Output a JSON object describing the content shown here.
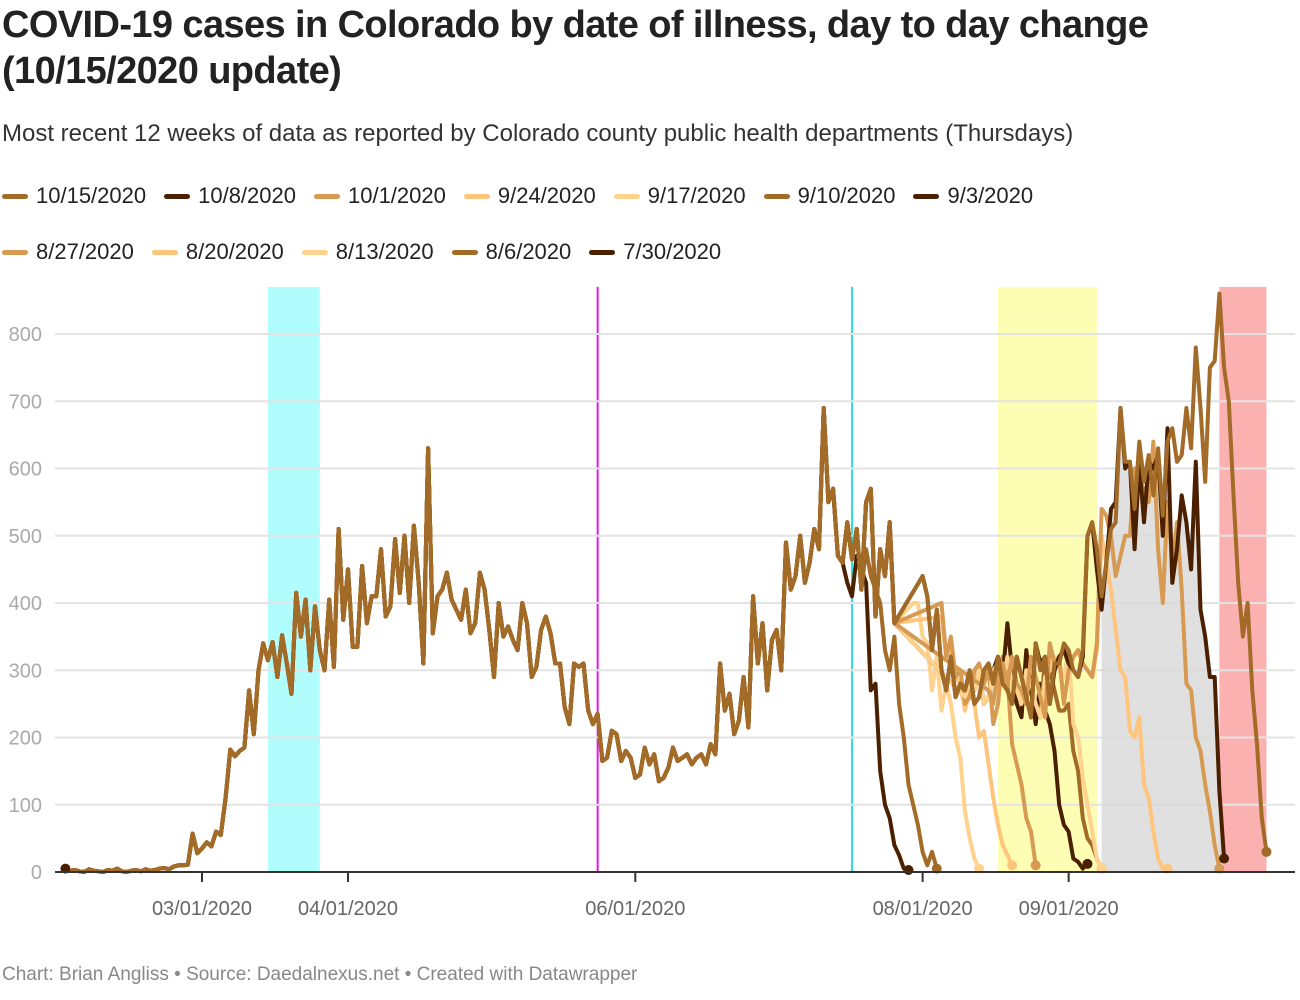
{
  "title": "COVID-19 cases in Colorado by date of illness, day to day change (10/15/2020 update)",
  "subtitle": "Most recent 12 weeks of data as reported by Colorado county public health departments (Thursdays)",
  "footer": "Chart: Brian Angliss • Source: Daedalnexus.net • Created with Datawrapper",
  "chart_data": {
    "type": "line",
    "title": "COVID-19 cases in Colorado by date of illness, day to day change (10/15/2020 update)",
    "subtitle": "Most recent 12 weeks of data as reported by Colorado county public health departments (Thursdays)",
    "xlabel": "",
    "ylabel": "",
    "x_start": "2020-02-01",
    "x_range": [
      "2020-01-25",
      "2020-10-17"
    ],
    "ylim": [
      0,
      870
    ],
    "yticks": [
      0,
      100,
      200,
      300,
      400,
      500,
      600,
      700,
      800
    ],
    "xticks": [
      {
        "date": "2020-03-01",
        "label": "03/01/2020"
      },
      {
        "date": "2020-04-01",
        "label": "04/01/2020"
      },
      {
        "date": "2020-06-01",
        "label": "06/01/2020"
      },
      {
        "date": "2020-08-01",
        "label": "08/01/2020"
      },
      {
        "date": "2020-09-01",
        "label": "09/01/2020"
      }
    ],
    "grid": true,
    "legend_position": "top",
    "highlights": [
      {
        "type": "band",
        "from": "2020-03-15",
        "to": "2020-03-26",
        "color": "#b1fcfc"
      },
      {
        "type": "line",
        "at": "2020-05-24",
        "color": "#e21ae2"
      },
      {
        "type": "line",
        "at": "2020-07-17",
        "color": "#2ce0e0"
      },
      {
        "type": "band",
        "from": "2020-08-17",
        "to": "2020-09-07",
        "color": "#fdfdb3"
      },
      {
        "type": "band",
        "from": "2020-10-03",
        "to": "2020-10-13",
        "color": "#fcb1b1"
      }
    ],
    "base_curve": {
      "start": "2020-02-01",
      "values": [
        5,
        2,
        3,
        1,
        0,
        4,
        2,
        1,
        0,
        3,
        2,
        5,
        1,
        0,
        2,
        3,
        1,
        4,
        2,
        3,
        5,
        6,
        4,
        8,
        10,
        10,
        11,
        57,
        28,
        35,
        44,
        38,
        60,
        55,
        110,
        182,
        172,
        180,
        185,
        270,
        205,
        300,
        340,
        315,
        342,
        290,
        352,
        310,
        265,
        415,
        350,
        405,
        300,
        395,
        330,
        300,
        405,
        305,
        510,
        375,
        450,
        335,
        335,
        455,
        370,
        410,
        410,
        480,
        380,
        395,
        495,
        415,
        500,
        400,
        515,
        430,
        310,
        630,
        355,
        410,
        420,
        445,
        405,
        390,
        375,
        420,
        355,
        370,
        445,
        420,
        360,
        290,
        400,
        350,
        365,
        345,
        330,
        400,
        370,
        290,
        305,
        360,
        380,
        355,
        310,
        310,
        245,
        220,
        310,
        305,
        310,
        240,
        220,
        235,
        165,
        170,
        210,
        205,
        165,
        180,
        170,
        140,
        145,
        185,
        160,
        175,
        135,
        140,
        155,
        185,
        165,
        170,
        175,
        160,
        170,
        175,
        160,
        190,
        175,
        310,
        240,
        265,
        205,
        225,
        290,
        215,
        410,
        310,
        370,
        270,
        345,
        360,
        300,
        490,
        420,
        440,
        500,
        430,
        460,
        510,
        480,
        690,
        550,
        570,
        470,
        460,
        520,
        465,
        510,
        420,
        550,
        570,
        380,
        480,
        440,
        520,
        370
      ],
      "color": "#4a2000",
      "name": "7/30/2020"
    },
    "series": [
      {
        "name": "10/15/2020",
        "color": "#a26b27",
        "tail_start": "2020-08-01",
        "tail": [
          440,
          410,
          330,
          390,
          300,
          270,
          320,
          260,
          280,
          270,
          300,
          250,
          260,
          300,
          310,
          280,
          320,
          280,
          270,
          250,
          320,
          290,
          260,
          230,
          340,
          300,
          320,
          250,
          310,
          310,
          340,
          330,
          300,
          290,
          330,
          500,
          520,
          480,
          410,
          460,
          510,
          520,
          690,
          610,
          610,
          540,
          640,
          580,
          620,
          560,
          630,
          530,
          640,
          660,
          610,
          620,
          690,
          630,
          780,
          690,
          580,
          750,
          760,
          860,
          750,
          700,
          560,
          430,
          350,
          400,
          270,
          190,
          80,
          30
        ]
      },
      {
        "name": "10/8/2020",
        "color": "#4a2000",
        "tail_start": "2020-08-01",
        "tail": [
          440,
          410,
          330,
          390,
          300,
          270,
          320,
          260,
          280,
          270,
          300,
          250,
          260,
          300,
          310,
          280,
          320,
          280,
          270,
          250,
          320,
          290,
          260,
          230,
          340,
          310,
          320,
          250,
          300,
          320,
          330,
          310,
          300,
          290,
          320,
          500,
          520,
          450,
          390,
          460,
          540,
          550,
          690,
          600,
          610,
          480,
          610,
          520,
          610,
          600,
          620,
          500,
          660,
          430,
          480,
          560,
          520,
          450,
          610,
          390,
          350,
          290,
          290,
          120,
          20
        ]
      },
      {
        "name": "10/1/2020",
        "color": "#d69a52",
        "tail_start": "2020-08-15",
        "tail": [
          270,
          250,
          300,
          310,
          280,
          320,
          280,
          270,
          250,
          320,
          290,
          260,
          230,
          340,
          310,
          320,
          250,
          300,
          320,
          330,
          310,
          300,
          290,
          340,
          540,
          530,
          500,
          440,
          470,
          500,
          500,
          600,
          580,
          570,
          550,
          640,
          480,
          400,
          550,
          460,
          520,
          420,
          280,
          270,
          200,
          180,
          130,
          90,
          40,
          5
        ]
      },
      {
        "name": "9/24/2020",
        "color": "#ffc57d",
        "tail_start": "2020-08-15",
        "tail": [
          270,
          250,
          300,
          310,
          280,
          320,
          280,
          270,
          250,
          320,
          290,
          260,
          230,
          340,
          310,
          320,
          250,
          300,
          320,
          330,
          310,
          300,
          290,
          330,
          500,
          460,
          420,
          360,
          300,
          290,
          210,
          200,
          230,
          130,
          110,
          60,
          20,
          5,
          5
        ]
      },
      {
        "name": "9/17/2020",
        "color": "#ffd28d",
        "tail_start": "2020-08-10",
        "tail": [
          260,
          280,
          270,
          300,
          250,
          260,
          300,
          310,
          280,
          320,
          280,
          270,
          250,
          300,
          280,
          250,
          230,
          290,
          300,
          320,
          300,
          290,
          330,
          220,
          200,
          140,
          100,
          60,
          20,
          5
        ]
      },
      {
        "name": "9/10/2020",
        "color": "#a26b27",
        "tail_start": "2020-08-10",
        "tail": [
          260,
          280,
          270,
          300,
          250,
          260,
          300,
          310,
          280,
          320,
          280,
          270,
          250,
          300,
          280,
          250,
          230,
          320,
          300,
          270,
          240,
          240,
          250,
          180,
          150,
          80,
          50,
          40,
          20,
          5
        ]
      },
      {
        "name": "9/3/2020",
        "color": "#4a2000",
        "tail_start": "2020-08-10",
        "tail": [
          260,
          280,
          270,
          300,
          250,
          260,
          300,
          320,
          290,
          370,
          300,
          250,
          230,
          330,
          270,
          220,
          280,
          240,
          220,
          180,
          100,
          70,
          60,
          20,
          15,
          5,
          12
        ]
      },
      {
        "name": "8/27/2020",
        "color": "#d69a52",
        "tail_start": "2020-08-05",
        "tail": [
          400,
          320,
          350,
          290,
          300,
          250,
          260,
          300,
          310,
          280,
          300,
          220,
          250,
          320,
          290,
          190,
          160,
          130,
          80,
          60,
          10
        ]
      },
      {
        "name": "8/20/2020",
        "color": "#ffc57d",
        "tail_start": "2020-08-05",
        "tail": [
          380,
          320,
          330,
          290,
          280,
          240,
          270,
          250,
          200,
          210,
          160,
          110,
          70,
          40,
          25,
          10
        ]
      },
      {
        "name": "8/13/2020",
        "color": "#ffd28d",
        "tail_start": "2020-07-30",
        "tail": [
          400,
          400,
          350,
          340,
          270,
          320,
          240,
          280,
          250,
          200,
          170,
          90,
          50,
          20,
          5
        ]
      },
      {
        "name": "8/6/2020",
        "color": "#a26b27",
        "tail_start": "2020-07-20",
        "tail": [
          480,
          440,
          420,
          400,
          330,
          300,
          350,
          250,
          200,
          130,
          100,
          70,
          30,
          10,
          30,
          5
        ]
      },
      {
        "name": "7/30/2020",
        "color": "#4a2000",
        "tail_start": "2020-07-15",
        "tail": [
          460,
          430,
          410,
          470,
          450,
          430,
          270,
          280,
          150,
          100,
          80,
          40,
          25,
          5,
          3
        ]
      }
    ]
  },
  "legend": [
    {
      "label": "10/15/2020",
      "color": "#a26b27"
    },
    {
      "label": "10/8/2020",
      "color": "#4a2000"
    },
    {
      "label": "10/1/2020",
      "color": "#d69a52"
    },
    {
      "label": "9/24/2020",
      "color": "#ffc57d"
    },
    {
      "label": "9/17/2020",
      "color": "#ffd28d"
    },
    {
      "label": "9/10/2020",
      "color": "#a26b27"
    },
    {
      "label": "9/3/2020",
      "color": "#4a2000"
    },
    {
      "label": "8/27/2020",
      "color": "#d69a52"
    },
    {
      "label": "8/20/2020",
      "color": "#ffc57d"
    },
    {
      "label": "8/13/2020",
      "color": "#ffd28d"
    },
    {
      "label": "8/6/2020",
      "color": "#a26b27"
    },
    {
      "label": "7/30/2020",
      "color": "#4a2000"
    }
  ]
}
